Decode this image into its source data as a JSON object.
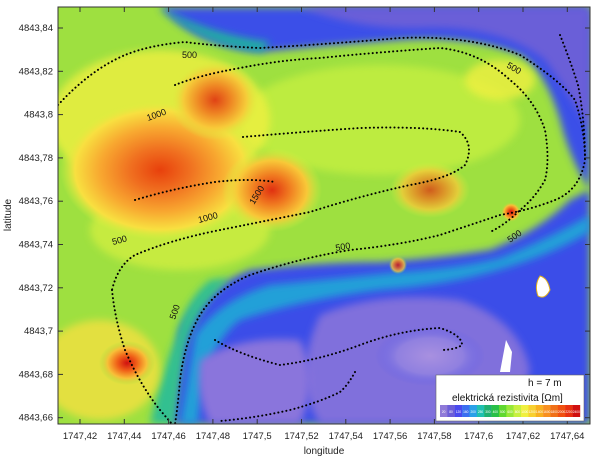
{
  "map": {
    "x_axis_title": "longitude",
    "y_axis_title": "latitude",
    "x_ticks": [
      "1747,42",
      "1747,44",
      "1747,46",
      "1747,48",
      "1747,5",
      "1747,52",
      "1747,54",
      "1747,56",
      "1747,58",
      "1747,6",
      "1747,62",
      "1747,64"
    ],
    "y_ticks": [
      "4843,84",
      "4843,82",
      "4843,8",
      "4843,78",
      "4843,76",
      "4843,74",
      "4843,72",
      "4843,7",
      "4843,68",
      "4843,66"
    ],
    "contour_labels": [
      "500",
      "500",
      "1000",
      "1500",
      "1000",
      "500",
      "500",
      "500",
      "500"
    ],
    "legend": {
      "depth_label": "h = 7 m",
      "title": "elektrická rezistivita [Ωm]",
      "scale_labels": [
        "20",
        "80",
        "120",
        "160",
        "200",
        "250",
        "300",
        "400",
        "500",
        "600",
        "800",
        "1000",
        "1200",
        "1400",
        "1600",
        "1800",
        "2000",
        "2200",
        "2400"
      ],
      "colors": [
        "#8f7ad8",
        "#6c5ed8",
        "#4a4aee",
        "#3a6ef0",
        "#2aa0e8",
        "#20c0b0",
        "#20b070",
        "#28c048",
        "#60d830",
        "#98e838",
        "#c8f040",
        "#f0f040",
        "#f8d030",
        "#f8b020",
        "#f89020",
        "#f07018",
        "#f05010",
        "#e83010",
        "#d01010"
      ]
    }
  }
}
